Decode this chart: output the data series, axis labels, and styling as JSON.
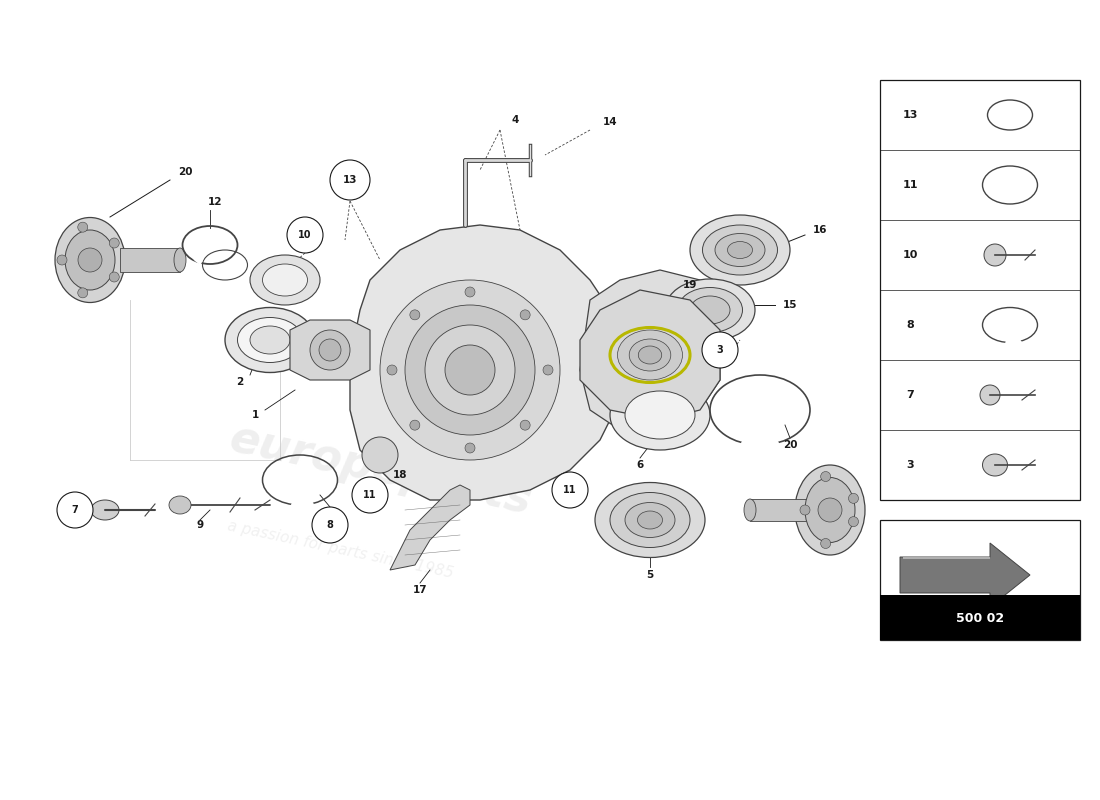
{
  "bg": "#ffffff",
  "lc": "#1a1a1a",
  "dgc": "#444444",
  "gc": "#888888",
  "lgc": "#cccccc",
  "mgc": "#999999",
  "page_number": "500 02",
  "watermark1": "europeparts",
  "watermark2": "a passion for parts since 1985",
  "legend_nums": [
    13,
    11,
    10,
    8,
    7,
    3
  ],
  "fig_w": 11.0,
  "fig_h": 8.0,
  "dpi": 100
}
